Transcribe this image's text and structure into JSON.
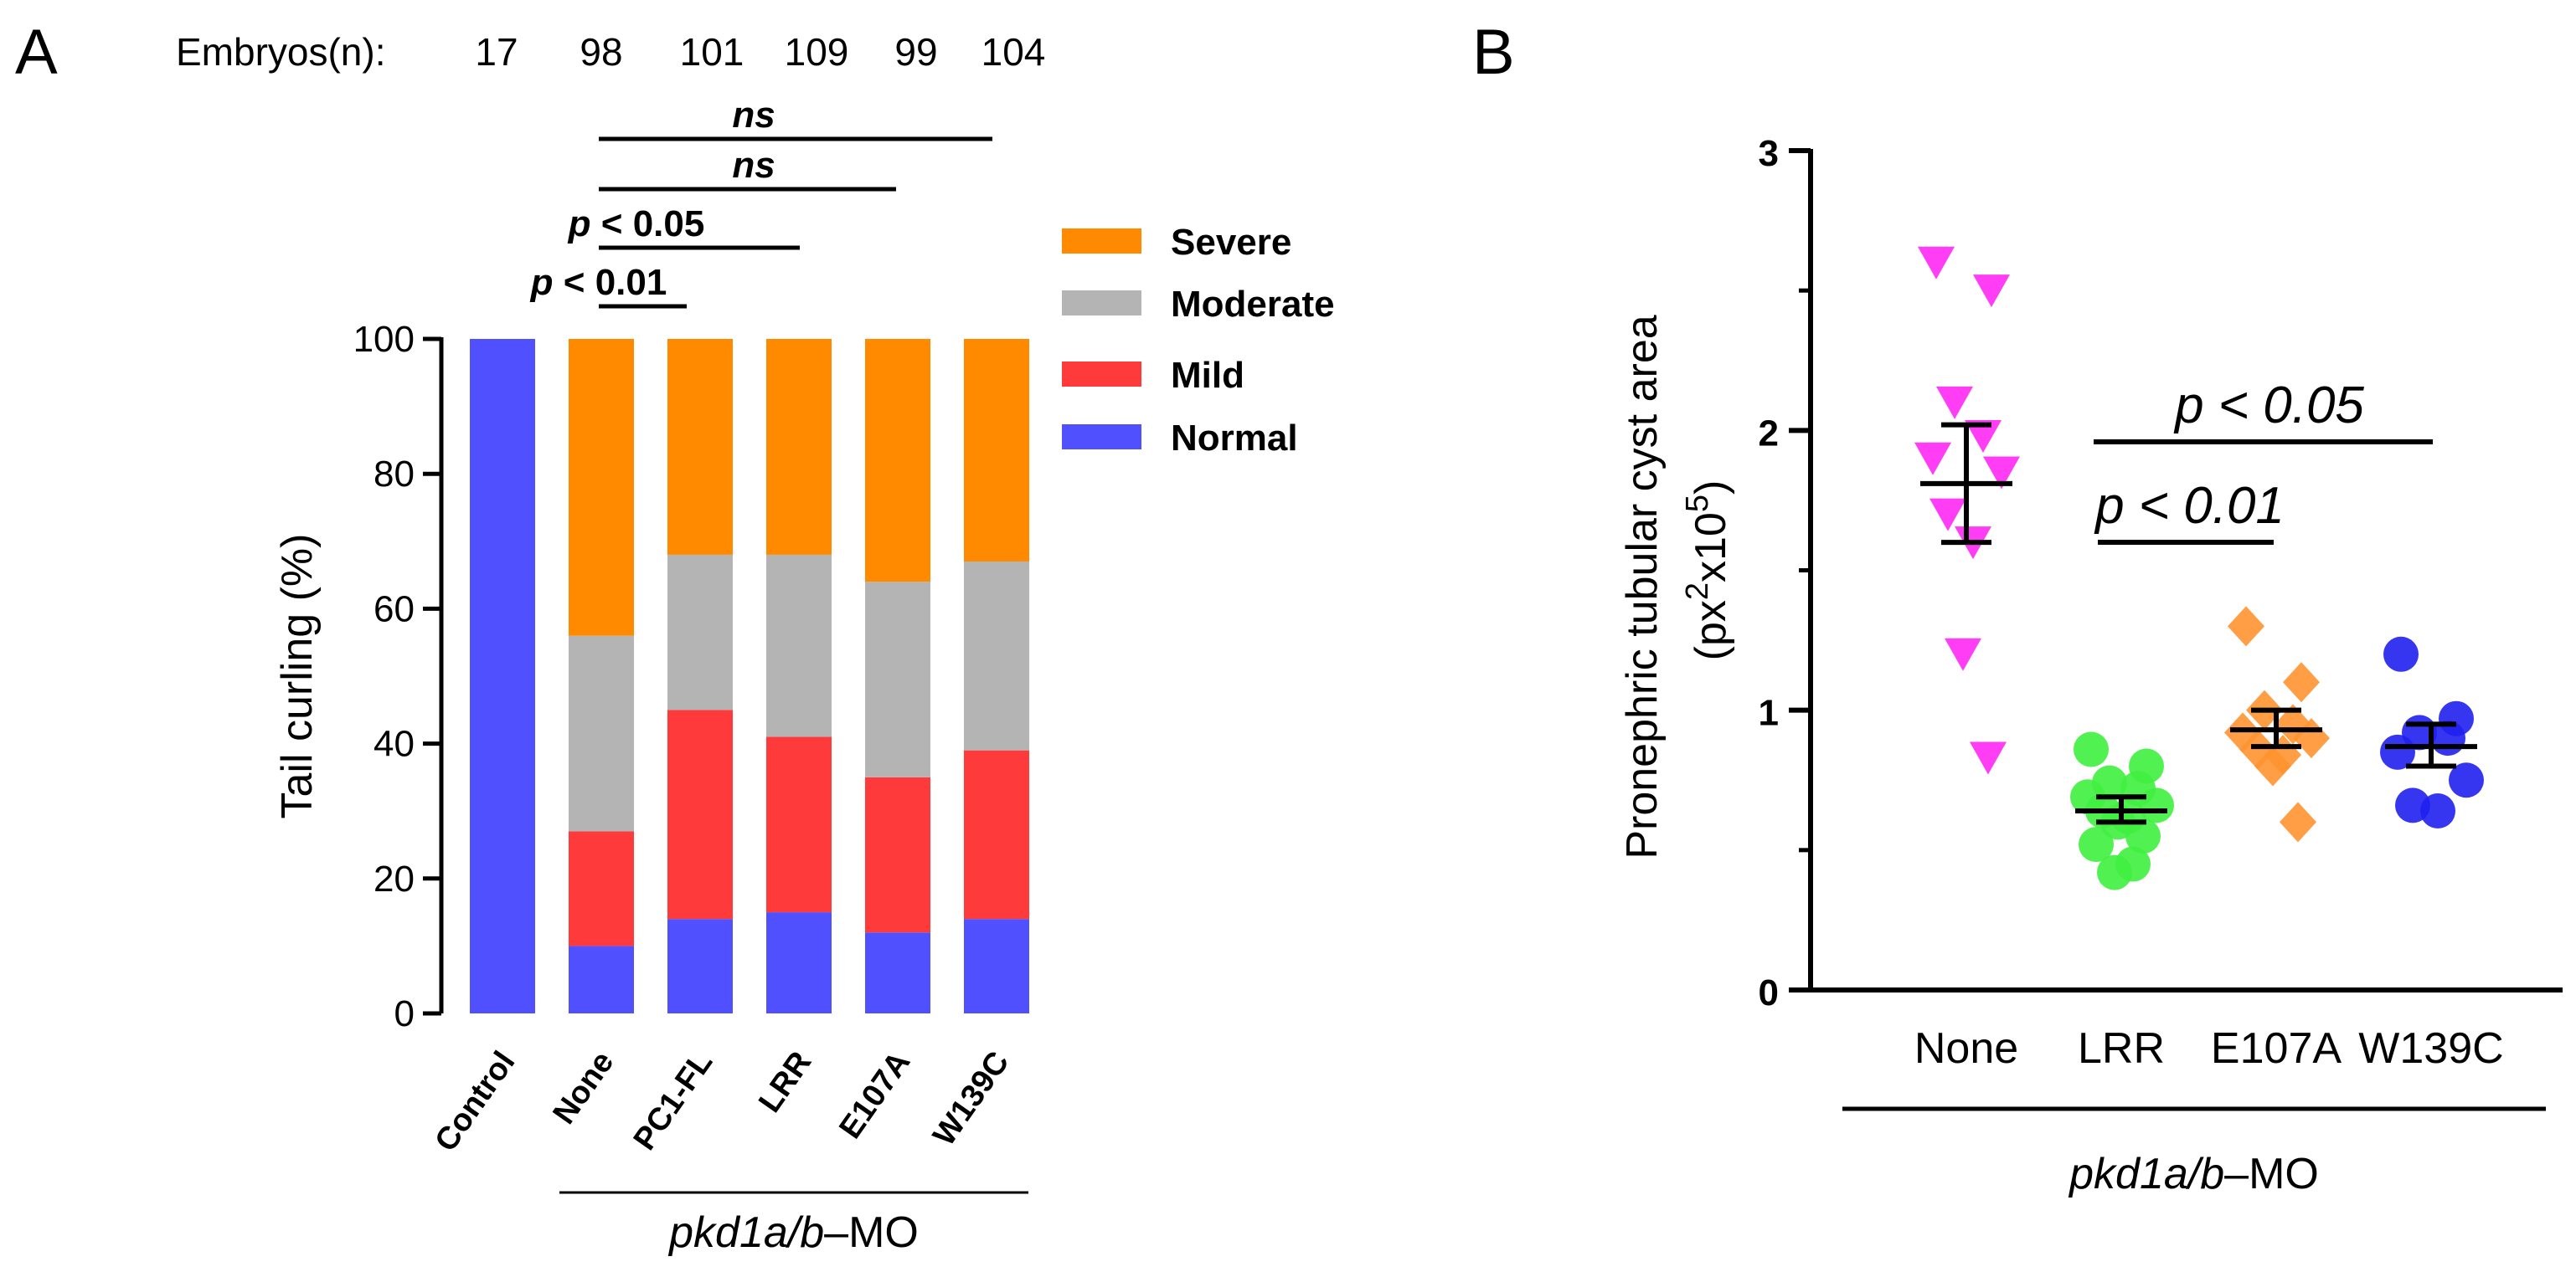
{
  "panels": {
    "a": {
      "letter": "A"
    },
    "b": {
      "letter": "B"
    }
  },
  "chart_data": [
    {
      "type": "bar",
      "stacked": true,
      "panel": "A",
      "title": "",
      "xlabel": "",
      "ylabel": "Tail curling (%)",
      "ylim": [
        0,
        100
      ],
      "yticks": [
        0,
        20,
        40,
        60,
        80,
        100
      ],
      "categories": [
        "Control",
        "None",
        "PC1-FL",
        "LRR",
        "E107A",
        "W139C"
      ],
      "group_label": {
        "prefix": "pkd1a/b",
        "suffix": "–MO",
        "applies_to": [
          "None",
          "PC1-FL",
          "LRR",
          "E107A",
          "W139C"
        ]
      },
      "embryos": {
        "label": "Embryos(n):",
        "counts": [
          "17",
          "98",
          "101",
          "109",
          "99",
          "104"
        ]
      },
      "series": [
        {
          "name": "Normal",
          "color": "#5050ff",
          "values": [
            100,
            10,
            14,
            15,
            12,
            14
          ]
        },
        {
          "name": "Mild",
          "color": "#ff3a3a",
          "values": [
            0,
            17,
            31,
            26,
            23,
            25
          ]
        },
        {
          "name": "Moderate",
          "color": "#b4b4b4",
          "values": [
            0,
            29,
            23,
            27,
            29,
            28
          ]
        },
        {
          "name": "Severe",
          "color": "#ff8a00",
          "values": [
            0,
            44,
            32,
            32,
            36,
            33
          ]
        }
      ],
      "legend_order": [
        "Severe",
        "Moderate",
        "Mild",
        "Normal"
      ],
      "legend_position": "right",
      "significance": [
        {
          "from": "None",
          "to": "W139C",
          "p_label": "",
          "p_value": "ns"
        },
        {
          "from": "None",
          "to": "E107A",
          "p_label": "",
          "p_value": "ns"
        },
        {
          "from": "None",
          "to": "LRR",
          "p_label": "p",
          "p_value": " < 0.05"
        },
        {
          "from": "None",
          "to": "PC1-FL",
          "p_label": "p",
          "p_value": " < 0.01"
        }
      ]
    },
    {
      "type": "scatter",
      "panel": "B",
      "title": "",
      "xlabel": "",
      "ylabel": "Pronephric tubular cyst area",
      "ylabel_unit": {
        "open": "(px",
        "sup1": "2",
        "mid": "x10",
        "sup2": "5",
        "close": ")"
      },
      "ylim": [
        0,
        3
      ],
      "yticks": [
        "0",
        "1",
        "2",
        "3"
      ],
      "categories": [
        "None",
        "LRR",
        "E107A",
        "W139C"
      ],
      "group_label": {
        "prefix": "pkd1a/b",
        "suffix": "–MO"
      },
      "series": [
        {
          "name": "None",
          "marker": "triangle-down",
          "color": "#ff3df5",
          "points": [
            2.6,
            2.5,
            2.1,
            1.98,
            1.9,
            1.85,
            1.7,
            1.6,
            1.2,
            0.83
          ],
          "mean": 1.81,
          "error_low": 1.6,
          "error_high": 2.02
        },
        {
          "name": "LRR",
          "marker": "circle",
          "color": "#3ff03f",
          "points": [
            0.86,
            0.8,
            0.74,
            0.72,
            0.69,
            0.66,
            0.64,
            0.62,
            0.6,
            0.55,
            0.52,
            0.45,
            0.42
          ],
          "mean": 0.64,
          "error_low": 0.6,
          "error_high": 0.69
        },
        {
          "name": "E107A",
          "marker": "diamond",
          "color": "#ff9430",
          "points": [
            1.3,
            1.1,
            1.0,
            0.95,
            0.92,
            0.9,
            0.86,
            0.84,
            0.8,
            0.6
          ],
          "mean": 0.93,
          "error_low": 0.87,
          "error_high": 1.0
        },
        {
          "name": "W139C",
          "marker": "circle",
          "color": "#2020f0",
          "points": [
            1.2,
            0.97,
            0.92,
            0.9,
            0.85,
            0.75,
            0.66,
            0.64
          ],
          "mean": 0.87,
          "error_low": 0.8,
          "error_high": 0.95
        }
      ],
      "significance": [
        {
          "from": "LRR",
          "to": "W139C",
          "p_label": "p",
          "p_value": " < 0.05"
        },
        {
          "from": "LRR",
          "to": "E107A",
          "p_label": "p",
          "p_value": " < 0.01"
        }
      ]
    }
  ]
}
